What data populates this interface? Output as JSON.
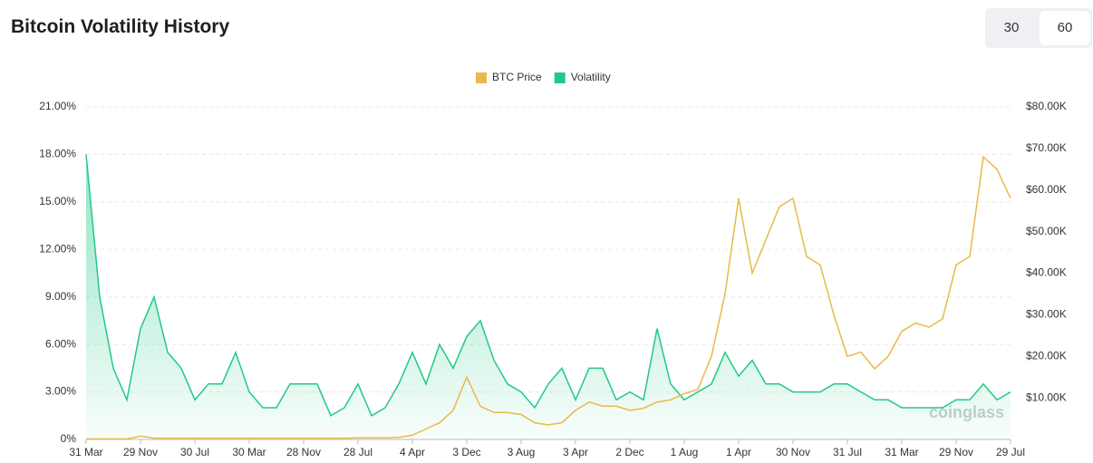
{
  "header": {
    "title": "Bitcoin Volatility History",
    "buttons": [
      "30",
      "60"
    ]
  },
  "chart_data": {
    "type": "line",
    "watermark": "coinglass",
    "categories": [
      "31 Mar",
      null,
      null,
      null,
      "29 Nov",
      null,
      null,
      null,
      "30 Jul",
      null,
      null,
      null,
      "30 Mar",
      null,
      null,
      null,
      "28 Nov",
      null,
      null,
      null,
      "28 Jul",
      null,
      null,
      null,
      "4 Apr",
      null,
      null,
      null,
      "3 Dec",
      null,
      null,
      null,
      "3 Aug",
      null,
      null,
      null,
      "3 Apr",
      null,
      null,
      null,
      "2 Dec",
      null,
      null,
      null,
      "1 Aug",
      null,
      null,
      null,
      "1 Apr",
      null,
      null,
      null,
      "30 Nov",
      null,
      null,
      null,
      "31 Jul",
      null,
      null,
      null,
      "31 Mar",
      null,
      null,
      null,
      "29 Nov",
      null,
      null,
      null,
      "29 Jul"
    ],
    "series": [
      {
        "name": "BTC Price",
        "color": "#e9b949",
        "axis": "y2",
        "values": [
          100,
          100,
          100,
          100,
          800,
          300,
          300,
          300,
          300,
          300,
          300,
          300,
          300,
          300,
          300,
          300,
          300,
          300,
          300,
          300,
          400,
          400,
          400,
          500,
          1000,
          2500,
          4000,
          7000,
          15000,
          8000,
          6500,
          6500,
          6000,
          4000,
          3500,
          4000,
          7000,
          9000,
          8000,
          8000,
          7000,
          7500,
          9000,
          9500,
          11000,
          12000,
          20000,
          35000,
          58000,
          40000,
          48000,
          56000,
          58000,
          44000,
          42000,
          30000,
          20000,
          21000,
          17000,
          20000,
          26000,
          28000,
          27000,
          29000,
          42000,
          44000,
          68000,
          65000,
          58000
        ]
      },
      {
        "name": "Volatility",
        "color": "#22c986",
        "values": [
          18,
          9,
          4.5,
          2.5,
          7,
          9,
          5.5,
          4.5,
          2.5,
          3.5,
          3.5,
          5.5,
          3,
          2,
          2,
          3.5,
          3.5,
          3.5,
          1.5,
          2,
          3.5,
          1.5,
          2,
          3.5,
          5.5,
          3.5,
          6,
          4.5,
          6.5,
          7.5,
          5,
          3.5,
          3,
          2,
          3.5,
          4.5,
          2.5,
          4.5,
          4.5,
          2.5,
          3,
          2.5,
          7,
          3.5,
          2.5,
          3,
          3.5,
          5.5,
          4,
          5,
          3.5,
          3.5,
          3,
          3,
          3,
          3.5,
          3.5,
          3,
          2.5,
          2.5,
          2,
          2,
          2,
          2,
          2.5,
          2.5,
          3.5,
          2.5,
          3
        ]
      }
    ],
    "ylim": [
      0,
      21
    ],
    "yticks": [
      {
        "value": 0,
        "label": "0%"
      },
      {
        "value": 3,
        "label": "3.00%"
      },
      {
        "value": 6,
        "label": "6.00%"
      },
      {
        "value": 9,
        "label": "9.00%"
      },
      {
        "value": 12,
        "label": "12.00%"
      },
      {
        "value": 15,
        "label": "15.00%"
      },
      {
        "value": 18,
        "label": "18.00%"
      },
      {
        "value": 21,
        "label": "21.00%"
      }
    ],
    "y2lim": [
      0,
      80000
    ],
    "y2ticks": [
      {
        "value": 10000,
        "label": "$10.00K"
      },
      {
        "value": 20000,
        "label": "$20.00K"
      },
      {
        "value": 30000,
        "label": "$30.00K"
      },
      {
        "value": 40000,
        "label": "$40.00K"
      },
      {
        "value": 50000,
        "label": "$50.00K"
      },
      {
        "value": 60000,
        "label": "$60.00K"
      },
      {
        "value": 70000,
        "label": "$70.00K"
      },
      {
        "value": 80000,
        "label": "$80.00K"
      }
    ],
    "grid": true,
    "legend": "top"
  }
}
